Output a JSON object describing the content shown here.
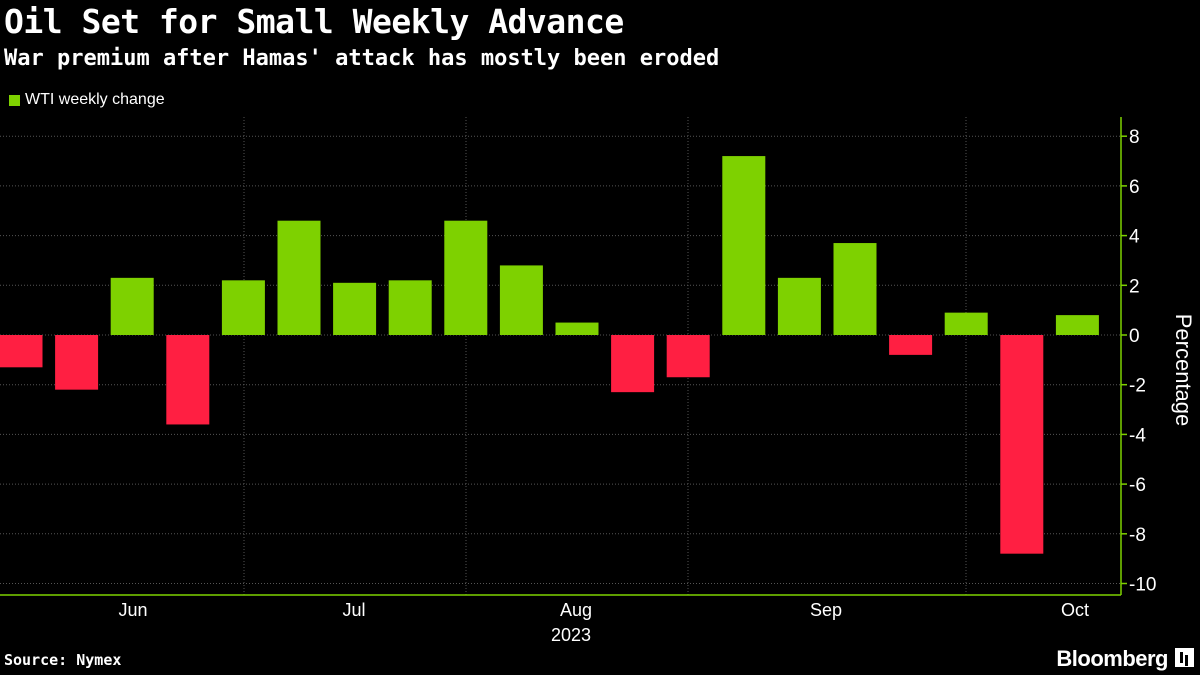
{
  "title": "Oil Set for Small Weekly Advance",
  "subtitle": "War premium after Hamas' attack has mostly been eroded",
  "source": "Source: Nymex",
  "brand": "Bloomberg",
  "colors": {
    "positive": "#7ed100",
    "negative": "#ff1f42",
    "grid": "#555555",
    "axis": "#7ed100"
  },
  "chart_data": {
    "type": "bar",
    "title": "Oil Set for Small Weekly Advance",
    "legend": [
      "WTI weekly change"
    ],
    "ylabel": "Percentage",
    "ylim": [
      -10,
      8
    ],
    "yticks": [
      8,
      6,
      4,
      2,
      0,
      -2,
      -4,
      -6,
      -8,
      -10
    ],
    "month_labels": [
      "Jun",
      "Jul",
      "Aug",
      "Sep",
      "Oct"
    ],
    "year_label": "2023",
    "values": [
      -1.3,
      -2.2,
      2.3,
      -3.6,
      2.2,
      4.6,
      2.1,
      2.2,
      4.6,
      2.8,
      0.5,
      -2.3,
      -1.7,
      7.2,
      2.3,
      3.7,
      -0.8,
      0.9,
      -8.8,
      0.8
    ]
  }
}
